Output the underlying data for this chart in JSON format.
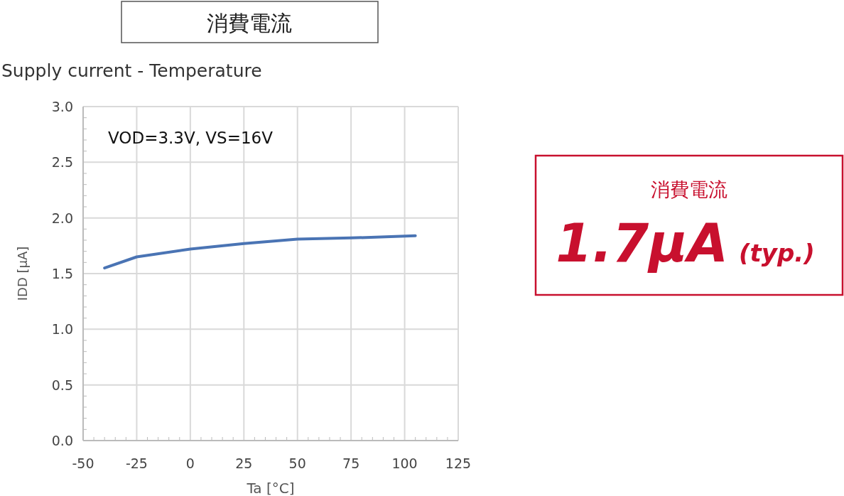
{
  "chart_data": {
    "type": "line",
    "title": "Supply current - Temperature",
    "xlabel": "Ta [°C]",
    "ylabel": "IDD [μA]",
    "annotations": [
      "消費電流",
      "VOD=3.3V, VS=16V",
      "消費電流",
      "1.7μA (typ.)"
    ],
    "x": [
      -40,
      -25,
      0,
      25,
      50,
      75,
      105
    ],
    "series": [
      {
        "color": "#4a74b4",
        "values": [
          1.55,
          1.65,
          1.72,
          1.77,
          1.81,
          1.82,
          1.84
        ]
      }
    ],
    "xlim": [
      -50,
      125
    ],
    "xticks": [
      -50,
      -25,
      0,
      25,
      50,
      75,
      100,
      125
    ],
    "ylim": [
      0,
      3
    ],
    "yticks": [
      {
        "value": 0,
        "label": "0.0"
      },
      {
        "value": 0.5,
        "label": "0.5"
      },
      {
        "value": 1,
        "label": "1.0"
      },
      {
        "value": 1.5,
        "label": "1.5"
      },
      {
        "value": 2,
        "label": "2.0"
      },
      {
        "value": 2.5,
        "label": "2.5"
      },
      {
        "value": 3,
        "label": "3.0"
      }
    ],
    "grid": true,
    "marker": "none",
    "line_style": "solid"
  }
}
